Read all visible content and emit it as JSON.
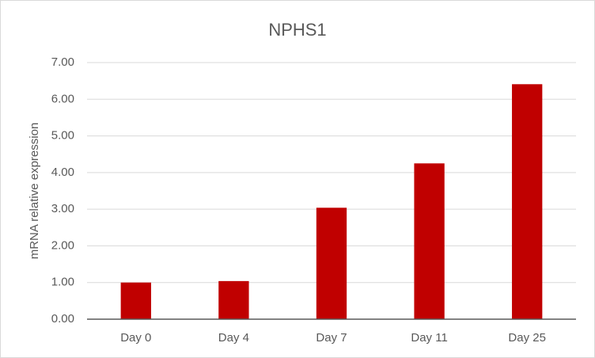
{
  "chart_data": {
    "type": "bar",
    "title": "NPHS1",
    "y_label": "mRNA relative expression",
    "categories": [
      "Day 0",
      "Day 4",
      "Day 7",
      "Day 11",
      "Day 25"
    ],
    "values": [
      1.0,
      1.04,
      3.04,
      4.25,
      6.41
    ],
    "color": "#c00000",
    "ylim": [
      0,
      7
    ],
    "yticks": [
      {
        "value": 0,
        "label": "0.00"
      },
      {
        "value": 1,
        "label": "1.00"
      },
      {
        "value": 2,
        "label": "2.00"
      },
      {
        "value": 3,
        "label": "3.00"
      },
      {
        "value": 4,
        "label": "4.00"
      },
      {
        "value": 5,
        "label": "5.00"
      },
      {
        "value": 6,
        "label": "6.00"
      },
      {
        "value": 7,
        "label": "7.00"
      }
    ],
    "grid": true
  }
}
